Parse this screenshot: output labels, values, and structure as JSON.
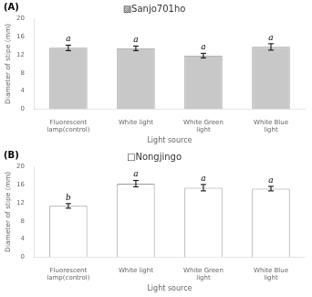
{
  "chart_data": [
    {
      "type": "bar",
      "title": "▨Sanjo701ho",
      "annotations": [
        "(A)"
      ],
      "categories": [
        "Fluorescent\nlamp(control)",
        "White light",
        "White Green\nlight",
        "White Blue\nlight"
      ],
      "values": [
        13.5,
        13.4,
        11.8,
        13.7
      ],
      "errors": [
        0.6,
        0.5,
        0.5,
        0.7
      ],
      "letters": [
        "a",
        "a",
        "a",
        "a"
      ],
      "color": "#c8c8c8",
      "xlabel": "Light source",
      "ylabel": "Diameter of stipe (mm)",
      "ylim": [
        0,
        20
      ],
      "yticks": [
        0,
        4,
        8,
        12,
        16,
        20
      ],
      "grid": false
    },
    {
      "type": "bar",
      "title": "□Nongjingo",
      "annotations": [
        "(B)"
      ],
      "categories": [
        "Fluorescent\nlamp(control)",
        "White light",
        "White Green\nlight",
        "White Blue\nlight"
      ],
      "values": [
        11.3,
        16.2,
        15.3,
        15.1
      ],
      "errors": [
        0.5,
        0.7,
        0.7,
        0.5
      ],
      "letters": [
        "b",
        "a",
        "a",
        "a"
      ],
      "color": "#ffffff",
      "xlabel": "Light source",
      "ylabel": "Diameter of stipe (mm)",
      "ylim": [
        0,
        20
      ],
      "yticks": [
        0,
        4,
        8,
        12,
        16,
        20
      ],
      "grid": false
    }
  ]
}
